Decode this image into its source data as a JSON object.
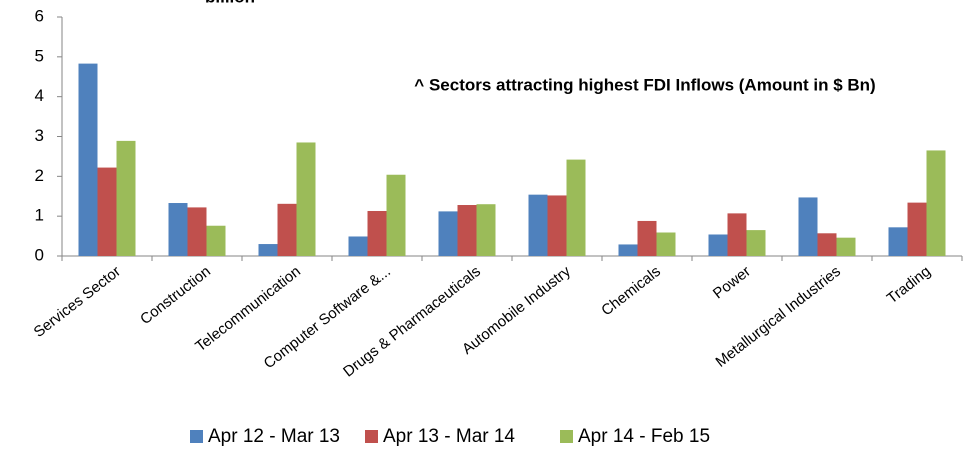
{
  "chart_data": {
    "type": "bar",
    "title": "^ Sectors attracting highest FDI Inflows (Amount in $ Bn)",
    "subtitle": "billion",
    "categories": [
      "Services Sector",
      "Construction",
      "Telecommunication",
      "Computer Software &...",
      "Drugs & Pharmaceuticals",
      "Automobile Industry",
      "Chemicals",
      "Power",
      "Metallurgical Industries",
      "Trading"
    ],
    "series": [
      {
        "name": "Apr 12 - Mar 13",
        "color": "#4f81bd",
        "values": [
          4.83,
          1.33,
          0.3,
          0.49,
          1.12,
          1.54,
          0.29,
          0.54,
          1.47,
          0.72
        ]
      },
      {
        "name": "Apr 13 - Mar 14",
        "color": "#c0504d",
        "values": [
          2.22,
          1.22,
          1.31,
          1.13,
          1.28,
          1.52,
          0.88,
          1.07,
          0.57,
          1.34
        ]
      },
      {
        "name": "Apr 14 - Feb 15",
        "color": "#9bbb59",
        "values": [
          2.89,
          0.76,
          2.85,
          2.04,
          1.3,
          2.42,
          0.59,
          0.65,
          0.46,
          2.65
        ]
      }
    ],
    "ylim": [
      0,
      6
    ],
    "yticks": [
      0,
      1,
      2,
      3,
      4,
      5,
      6
    ],
    "grid": false,
    "legend": "bottom"
  }
}
